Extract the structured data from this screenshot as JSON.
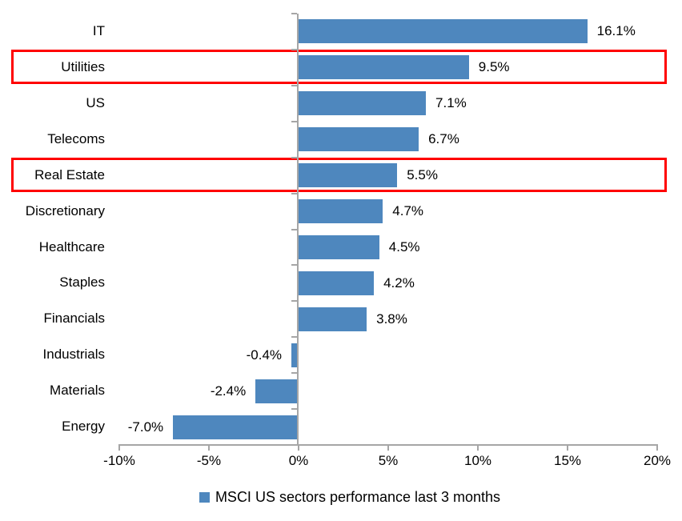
{
  "chart_data": {
    "type": "bar",
    "orientation": "horizontal",
    "title": "",
    "categories": [
      "IT",
      "Utilities",
      "US",
      "Telecoms",
      "Real Estate",
      "Discretionary",
      "Healthcare",
      "Staples",
      "Financials",
      "Industrials",
      "Materials",
      "Energy"
    ],
    "values": [
      16.1,
      9.5,
      7.1,
      6.7,
      5.5,
      4.7,
      4.5,
      4.2,
      3.8,
      -0.4,
      -2.4,
      -7.0
    ],
    "value_labels": [
      "16.1%",
      "9.5%",
      "7.1%",
      "6.7%",
      "5.5%",
      "4.7%",
      "4.5%",
      "4.2%",
      "3.8%",
      "-0.4%",
      "-2.4%",
      "-7.0%"
    ],
    "xlabel": "",
    "ylabel": "",
    "xlim": [
      -10,
      20
    ],
    "x_tick_values": [
      -10,
      -5,
      0,
      5,
      10,
      15,
      20
    ],
    "x_tick_labels": [
      "-10%",
      "-5%",
      "0%",
      "5%",
      "10%",
      "15%",
      "20%"
    ],
    "grid": false,
    "legend": "MSCI US sectors performance last 3 months",
    "legend_position": "bottom-center",
    "bar_color": "#4e87be",
    "axis_color": "#a6a6a6",
    "text_color": "#000000",
    "highlight_color": "#ff0000",
    "highlighted_categories": [
      "Utilities",
      "Real Estate"
    ]
  }
}
